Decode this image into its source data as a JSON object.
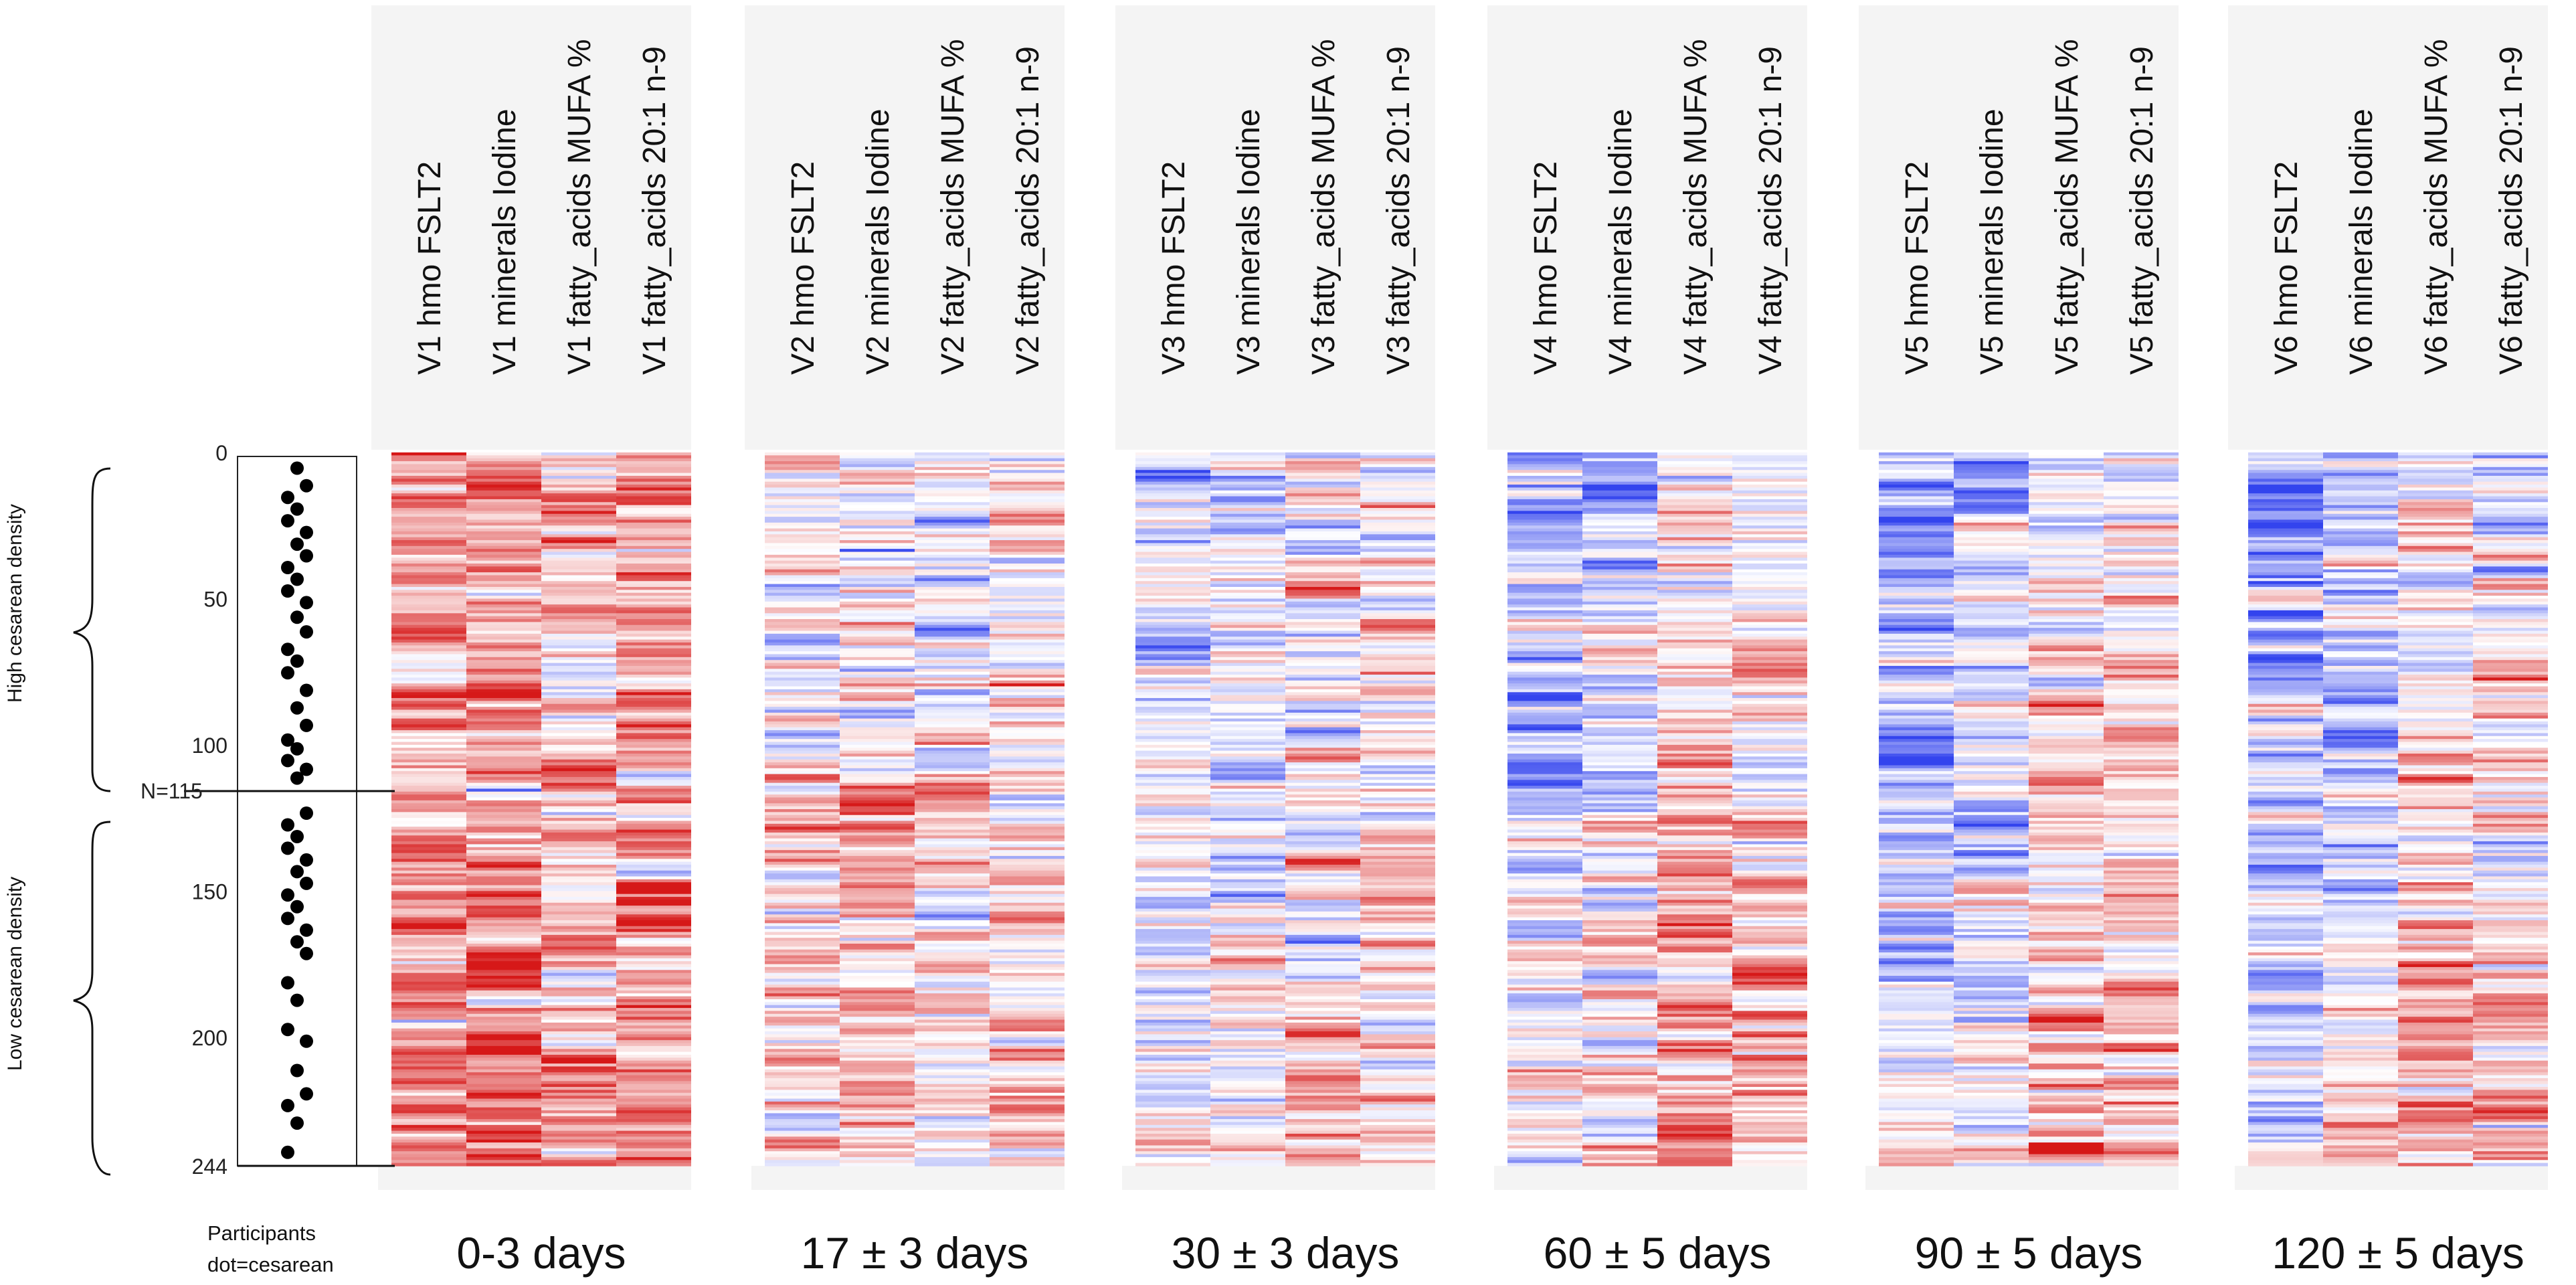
{
  "chart_data": {
    "type": "heatmap",
    "title": "",
    "participants": {
      "n_total": 244,
      "split_label": "N=115",
      "split_value": 115,
      "ticks": [
        "0",
        "50",
        "100",
        "150",
        "200",
        "244"
      ],
      "tick_values": [
        0,
        50,
        100,
        150,
        200,
        244
      ],
      "dot_rows": [
        4,
        10,
        14,
        18,
        22,
        26,
        30,
        34,
        38,
        42,
        46,
        50,
        55,
        60,
        66,
        70,
        74,
        80,
        86,
        92,
        97,
        100,
        104,
        107,
        110,
        122,
        126,
        130,
        134,
        138,
        142,
        146,
        150,
        154,
        158,
        162,
        166,
        170,
        180,
        186,
        196,
        200,
        210,
        218,
        222,
        228,
        238
      ],
      "group_labels": {
        "high": "High cesarean density",
        "low": "Low cesarean density"
      },
      "caption_line1": "Participants",
      "caption_line2": "dot=cesarean"
    },
    "color_scale": {
      "low": "#3333ee",
      "mid": "#ffffff",
      "high": "#dd1111"
    },
    "visits": [
      {
        "label": "0-3 days",
        "columns": [
          "V1 hmo FSLT2",
          "V1 minerals Iodine",
          "V1 fatty_acids MUFA %",
          "V1 fatty_acids 20:1 n-9"
        ],
        "means": [
          0.35,
          0.4,
          0.2,
          0.3
        ]
      },
      {
        "label": "17 ± 3 days",
        "columns": [
          "V2 hmo FSLT2",
          "V2 minerals Iodine",
          "V2 fatty_acids MUFA %",
          "V2 fatty_acids 20:1 n-9"
        ],
        "means": [
          0.0,
          0.05,
          -0.1,
          0.05
        ]
      },
      {
        "label": "30 ± 3 days",
        "columns": [
          "V3 hmo FSLT2",
          "V3 minerals Iodine",
          "V3 fatty_acids MUFA %",
          "V3 fatty_acids 20:1 n-9"
        ],
        "means": [
          -0.2,
          -0.1,
          0.0,
          0.0
        ]
      },
      {
        "label": "60 ± 5 days",
        "columns": [
          "V4 hmo FSLT2",
          "V4 minerals Iodine",
          "V4 fatty_acids MUFA %",
          "V4 fatty_acids 20:1 n-9"
        ],
        "means": [
          -0.45,
          -0.3,
          0.05,
          -0.05
        ]
      },
      {
        "label": "90 ± 5 days",
        "columns": [
          "V5 hmo FSLT2",
          "V5 minerals Iodine",
          "V5 fatty_acids MUFA %",
          "V5 fatty_acids 20:1 n-9"
        ],
        "means": [
          -0.5,
          -0.35,
          -0.05,
          -0.1
        ]
      },
      {
        "label": "120 ± 5 days",
        "columns": [
          "V6 hmo FSLT2",
          "V6 minerals Iodine",
          "V6 fatty_acids MUFA %",
          "V6 fatty_acids 20:1 n-9"
        ],
        "means": [
          -0.55,
          -0.4,
          -0.05,
          -0.15
        ]
      }
    ]
  }
}
